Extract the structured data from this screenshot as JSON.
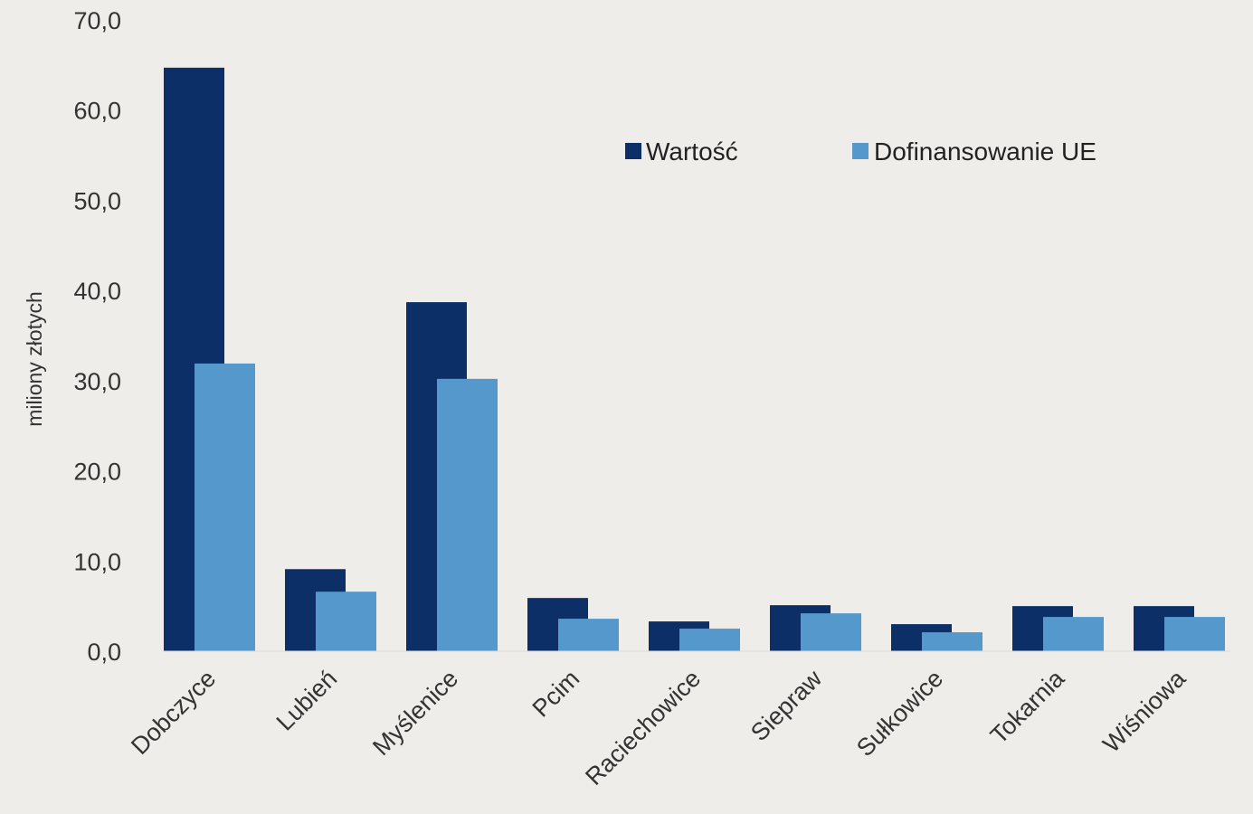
{
  "chart_data": {
    "type": "bar",
    "title": "",
    "xlabel": "",
    "ylabel": "miliony złotych",
    "ylim": [
      0,
      70
    ],
    "yticks": [
      "0,0",
      "10,0",
      "20,0",
      "30,0",
      "40,0",
      "50,0",
      "60,0",
      "70,0"
    ],
    "grid": false,
    "legend_position": "top-right",
    "categories": [
      "Dobczyce",
      "Lubień",
      "Myślenice",
      "Pcim",
      "Raciechowice",
      "Siepraw",
      "Sułkowice",
      "Tokarnia",
      "Wiśniowa"
    ],
    "series": [
      {
        "name": "Wartość",
        "color": "#0b2f66",
        "values": [
          64.7,
          9.1,
          38.7,
          5.9,
          3.3,
          5.1,
          3.0,
          5.0,
          5.0
        ]
      },
      {
        "name": "Dofinansowanie UE",
        "color": "#5599cc",
        "values": [
          31.9,
          6.6,
          30.2,
          3.6,
          2.5,
          4.2,
          2.1,
          3.8,
          3.8
        ]
      }
    ]
  }
}
